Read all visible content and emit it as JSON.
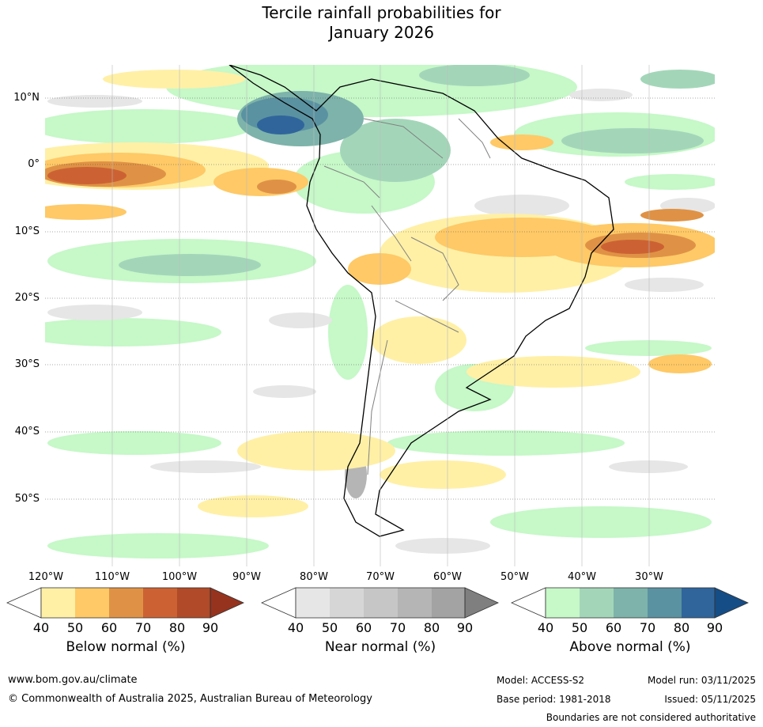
{
  "title": {
    "line1": "Tercile rainfall probabilities for",
    "line2": "January 2026"
  },
  "map": {
    "lat_labels": [
      "10°N",
      "0°",
      "10°S",
      "20°S",
      "30°S",
      "40°S",
      "50°S"
    ],
    "lon_labels": [
      "120°W",
      "110°W",
      "100°W",
      "90°W",
      "80°W",
      "70°W",
      "60°W",
      "50°W",
      "40°W",
      "30°W"
    ]
  },
  "colorbars": {
    "ticks": [
      "40",
      "50",
      "60",
      "70",
      "80",
      "90"
    ],
    "below": {
      "label": "Below normal (%)",
      "colors": [
        "#fff0a6",
        "#fec966",
        "#df9245",
        "#cc6233",
        "#b04a28",
        "#96331e"
      ]
    },
    "near": {
      "label": "Near normal (%)",
      "colors": [
        "#e6e6e6",
        "#d6d6d6",
        "#c6c6c6",
        "#b5b5b5",
        "#a3a3a3",
        "#7f7f7f"
      ]
    },
    "above": {
      "label": "Above normal (%)",
      "colors": [
        "#c6f8c8",
        "#a3d6b9",
        "#7db3aa",
        "#5a92a1",
        "#30659c",
        "#154d86"
      ]
    }
  },
  "footer": {
    "url": "www.bom.gov.au/climate",
    "copyright": "© Commonwealth of Australia 2025, Australian Bureau of Meteorology",
    "model": "Model: ACCESS-S2",
    "model_run": "Model run: 03/11/2025",
    "base_period": "Base period: 1981-2018",
    "issued": "Issued: 05/11/2025",
    "disclaimer": "Boundaries are not considered authoritative"
  }
}
